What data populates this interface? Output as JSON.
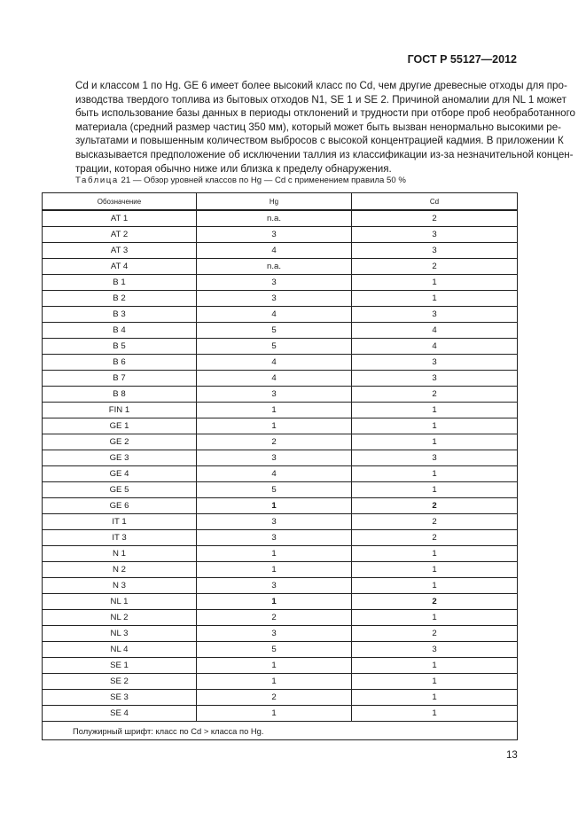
{
  "header": {
    "doc_id": "ГОСТ Р 55127—2012"
  },
  "paragraph_lines": [
    "Cd и классом 1 по Hg. GE 6 имеет более высокий класс по Cd, чем другие древесные отходы для про-",
    "изводства твердого топлива из бытовых отходов N1, SE 1 и SE 2. Причиной аномалии для NL 1 может",
    "быть использование базы данных в периоды отклонений и трудности при отборе проб необработанного",
    "материала (средний размер частиц 350 мм), который может быть вызван ненормально высокими ре-",
    "зультатами и повышенным количеством выбросов с высокой концентрацией кадмия. В приложении К",
    "высказывается предположение об исключении таллия из классификации из-за незначительной концен-",
    "трации, которая обычно ниже или близка к пределу обнаружения."
  ],
  "caption": {
    "label": "Таблица",
    "number": "21",
    "text": " — Обзор уровней классов по Hg — Cd с применением правила 50 %"
  },
  "table": {
    "columns": [
      "Обозначение",
      "Hg",
      "Cd"
    ],
    "rows": [
      {
        "id": "AT 1",
        "hg": "n.a.",
        "cd": "2",
        "bold": false
      },
      {
        "id": "AT 2",
        "hg": "3",
        "cd": "3",
        "bold": false
      },
      {
        "id": "AT 3",
        "hg": "4",
        "cd": "3",
        "bold": false
      },
      {
        "id": "AT 4",
        "hg": "n.a.",
        "cd": "2",
        "bold": false
      },
      {
        "id": "B 1",
        "hg": "3",
        "cd": "1",
        "bold": false
      },
      {
        "id": "B 2",
        "hg": "3",
        "cd": "1",
        "bold": false
      },
      {
        "id": "B 3",
        "hg": "4",
        "cd": "3",
        "bold": false
      },
      {
        "id": "B 4",
        "hg": "5",
        "cd": "4",
        "bold": false
      },
      {
        "id": "B 5",
        "hg": "5",
        "cd": "4",
        "bold": false
      },
      {
        "id": "B 6",
        "hg": "4",
        "cd": "3",
        "bold": false
      },
      {
        "id": "B 7",
        "hg": "4",
        "cd": "3",
        "bold": false
      },
      {
        "id": "B 8",
        "hg": "3",
        "cd": "2",
        "bold": false
      },
      {
        "id": "FIN 1",
        "hg": "1",
        "cd": "1",
        "bold": false
      },
      {
        "id": "GE 1",
        "hg": "1",
        "cd": "1",
        "bold": false
      },
      {
        "id": "GE 2",
        "hg": "2",
        "cd": "1",
        "bold": false
      },
      {
        "id": "GE 3",
        "hg": "3",
        "cd": "3",
        "bold": false
      },
      {
        "id": "GE 4",
        "hg": "4",
        "cd": "1",
        "bold": false
      },
      {
        "id": "GE 5",
        "hg": "5",
        "cd": "1",
        "bold": false
      },
      {
        "id": "GE 6",
        "hg": "1",
        "cd": "2",
        "bold": true
      },
      {
        "id": "IT 1",
        "hg": "3",
        "cd": "2",
        "bold": false
      },
      {
        "id": "IT 3",
        "hg": "3",
        "cd": "2",
        "bold": false
      },
      {
        "id": "N 1",
        "hg": "1",
        "cd": "1",
        "bold": false
      },
      {
        "id": "N 2",
        "hg": "1",
        "cd": "1",
        "bold": false
      },
      {
        "id": "N 3",
        "hg": "3",
        "cd": "1",
        "bold": false
      },
      {
        "id": "NL 1",
        "hg": "1",
        "cd": "2",
        "bold": true
      },
      {
        "id": "NL 2",
        "hg": "2",
        "cd": "1",
        "bold": false
      },
      {
        "id": "NL 3",
        "hg": "3",
        "cd": "2",
        "bold": false
      },
      {
        "id": "NL 4",
        "hg": "5",
        "cd": "3",
        "bold": false
      },
      {
        "id": "SE 1",
        "hg": "1",
        "cd": "1",
        "bold": false
      },
      {
        "id": "SE 2",
        "hg": "1",
        "cd": "1",
        "bold": false
      },
      {
        "id": "SE 3",
        "hg": "2",
        "cd": "1",
        "bold": false
      },
      {
        "id": "SE 4",
        "hg": "1",
        "cd": "1",
        "bold": false
      }
    ],
    "note": "Полужирный шрифт: класс по Cd > класса по Hg."
  },
  "page_number": "13"
}
